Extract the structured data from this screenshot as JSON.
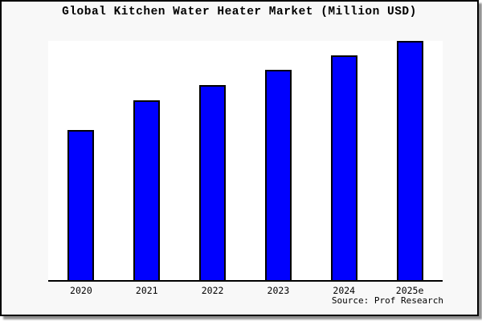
{
  "chart_data": {
    "type": "bar",
    "title": "Global Kitchen Water Heater Market (Million USD)",
    "categories": [
      "2020",
      "2021",
      "2022",
      "2023",
      "2024",
      "2025e"
    ],
    "values": [
      62.8,
      75.2,
      81.6,
      87.9,
      94.0,
      100.0
    ],
    "ylim": [
      0,
      100
    ],
    "xlabel": "",
    "ylabel": "",
    "y_axis_labels_visible": false,
    "gridlines": false,
    "legend": "none",
    "source": "Source: Prof Research",
    "note": "No y-axis scale is shown in the image; values are bar heights as a percentage of the tallest bar (2025e)"
  },
  "colors": {
    "bar_fill": "#0000FE",
    "bar_border": "#000000",
    "figure_background": "#F8F8F8",
    "plot_background": "#FFFFFF",
    "axis_line": "#000000",
    "title_text": "#000000",
    "shadow": "#909090"
  }
}
